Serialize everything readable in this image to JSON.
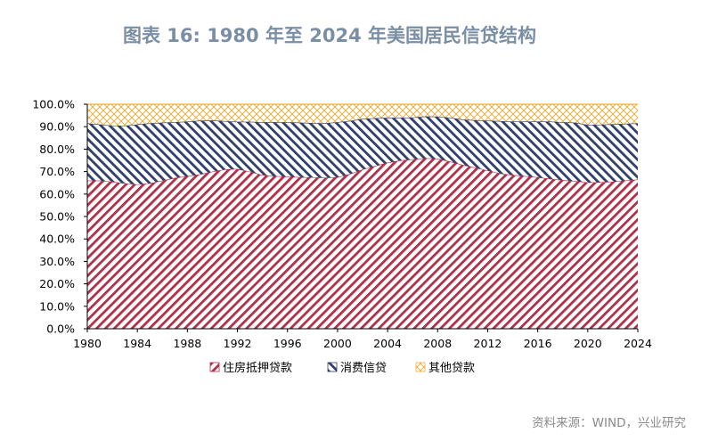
{
  "title": "图表 16: 1980 年至 2024 年美国居民信贷结构",
  "source": "资料来源：WIND，兴业研究",
  "colors": {
    "mortgage": "#b03048",
    "consumer": "#2f3f68",
    "other": "#f0b040"
  },
  "chart_data": {
    "type": "area",
    "stacked": true,
    "x": [
      1980,
      1981,
      1982,
      1983,
      1984,
      1985,
      1986,
      1987,
      1988,
      1989,
      1990,
      1991,
      1992,
      1993,
      1994,
      1995,
      1996,
      1997,
      1998,
      1999,
      2000,
      2001,
      2002,
      2003,
      2004,
      2005,
      2006,
      2007,
      2008,
      2009,
      2010,
      2011,
      2012,
      2013,
      2014,
      2015,
      2016,
      2017,
      2018,
      2019,
      2020,
      2021,
      2022,
      2023,
      2024
    ],
    "x_ticks": [
      1980,
      1984,
      1988,
      1992,
      1996,
      2000,
      2004,
      2008,
      2012,
      2016,
      2020,
      2024
    ],
    "y_ticks": [
      "0.0%",
      "10.0%",
      "20.0%",
      "30.0%",
      "40.0%",
      "50.0%",
      "60.0%",
      "70.0%",
      "80.0%",
      "90.0%",
      "100.0%"
    ],
    "ylim": [
      0,
      100
    ],
    "series": [
      {
        "name": "住房抵押贷款",
        "pattern": "diag-right",
        "values": [
          66.0,
          66.0,
          65.5,
          64.8,
          64.3,
          64.8,
          66.0,
          67.2,
          68.0,
          68.8,
          70.0,
          71.0,
          71.2,
          70.0,
          68.5,
          68.0,
          67.8,
          67.5,
          67.5,
          67.3,
          67.5,
          69.0,
          71.0,
          72.5,
          74.0,
          75.0,
          75.5,
          76.0,
          75.8,
          74.5,
          73.0,
          71.8,
          70.5,
          69.2,
          68.5,
          68.0,
          67.5,
          66.8,
          66.2,
          65.8,
          65.2,
          65.3,
          65.5,
          66.0,
          66.5
        ]
      },
      {
        "name": "消费信贷",
        "pattern": "diag-left",
        "values": [
          25.5,
          25.0,
          25.0,
          25.7,
          26.7,
          26.7,
          25.8,
          24.8,
          24.3,
          23.9,
          22.8,
          21.5,
          21.0,
          22.2,
          23.5,
          24.0,
          24.2,
          24.3,
          24.1,
          24.2,
          24.5,
          23.6,
          22.5,
          21.3,
          20.0,
          19.0,
          18.6,
          18.6,
          18.7,
          19.5,
          20.2,
          21.1,
          22.2,
          23.3,
          23.8,
          24.3,
          24.8,
          25.5,
          25.8,
          26.0,
          25.6,
          25.6,
          25.6,
          25.3,
          25.0
        ]
      },
      {
        "name": "其他贷款",
        "pattern": "crosshatch",
        "values": [
          8.5,
          9.0,
          9.5,
          9.5,
          9.0,
          8.5,
          8.2,
          8.0,
          7.7,
          7.3,
          7.2,
          7.5,
          7.8,
          7.8,
          8.0,
          8.0,
          8.0,
          8.2,
          8.4,
          8.5,
          8.0,
          7.4,
          6.5,
          6.2,
          6.0,
          6.0,
          5.9,
          5.4,
          5.5,
          6.0,
          6.8,
          7.1,
          7.3,
          7.5,
          7.7,
          7.7,
          7.7,
          7.7,
          8.0,
          8.2,
          9.2,
          9.1,
          8.9,
          8.7,
          8.5
        ]
      }
    ]
  }
}
